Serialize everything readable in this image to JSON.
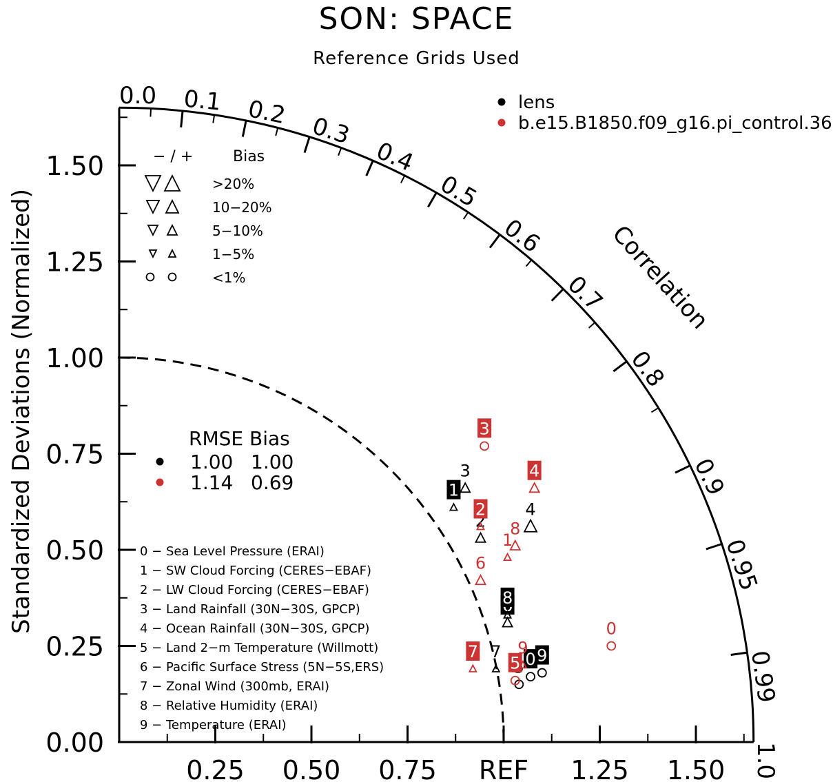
{
  "chart_data": {
    "type": "scatter",
    "subtype": "taylor-diagram",
    "title": "SON: SPACE",
    "subtitle": "Reference Grids Used",
    "ylabel": "Standardized Deviations (Normalized)",
    "arc_label": "Correlation",
    "ref_label": "REF",
    "std_max": 1.65,
    "y_ticks": [
      "0.00",
      "0.25",
      "0.50",
      "0.75",
      "1.00",
      "1.25",
      "1.50"
    ],
    "x_ticks": [
      "0.25",
      "0.50",
      "0.75",
      "REF",
      "1.25",
      "1.50"
    ],
    "corr_ticks": [
      "0.0",
      "0.1",
      "0.2",
      "0.3",
      "0.4",
      "0.5",
      "0.6",
      "0.7",
      "0.8",
      "0.9",
      "0.95",
      "0.99",
      "1.0"
    ],
    "bias_legend": {
      "header_sign": "− / +",
      "header_label": "Bias",
      "rows": [
        ">20%",
        "10−20%",
        "5−10%",
        "1−5%",
        "<1%"
      ]
    },
    "stats_legend": {
      "header": "RMSE Bias",
      "rows": [
        {
          "rmse": "1.00",
          "bias": "1.00",
          "color": "#000000"
        },
        {
          "rmse": "1.14",
          "bias": "0.69",
          "color": "#cc3333"
        }
      ]
    },
    "variables": [
      "0 − Sea Level Pressure (ERAI)",
      "1 − SW Cloud Forcing (CERES−EBAF)",
      "2 − LW Cloud Forcing (CERES−EBAF)",
      "3 − Land Rainfall (30N−30S, GPCP)",
      "4 − Ocean Rainfall (30N−30S, GPCP)",
      "5 − Land 2−m Temperature (Willmott)",
      "6 − Pacific Surface Stress (5N−5S,ERS)",
      "7 − Zonal Wind (300mb, ERAI)",
      "8 − Relative Humidity (ERAI)",
      "9 − Temperature (ERAI)"
    ],
    "series": [
      {
        "name": "lens",
        "color": "#000000",
        "points": [
          {
            "id": "0",
            "x": 1.07,
            "y": 0.17,
            "bias": "<1%",
            "sign": "+"
          },
          {
            "id": "1",
            "x": 0.87,
            "y": 0.61,
            "bias": "1-5%",
            "sign": "+"
          },
          {
            "id": "2",
            "x": 0.94,
            "y": 0.53,
            "bias": "5-10%",
            "sign": "+"
          },
          {
            "id": "3",
            "x": 0.9,
            "y": 0.66,
            "bias": "5-10%",
            "sign": "+"
          },
          {
            "id": "4",
            "x": 1.07,
            "y": 0.56,
            "bias": "10-20%",
            "sign": "+"
          },
          {
            "id": "5",
            "x": 1.04,
            "y": 0.15,
            "bias": "<1%",
            "sign": "+"
          },
          {
            "id": "6",
            "x": 1.01,
            "y": 0.31,
            "bias": "5-10%",
            "sign": "+"
          },
          {
            "id": "7",
            "x": 0.98,
            "y": 0.19,
            "bias": "1-5%",
            "sign": "+"
          },
          {
            "id": "8",
            "x": 1.01,
            "y": 0.33,
            "bias": "1-5%",
            "sign": "+"
          },
          {
            "id": "9",
            "x": 1.1,
            "y": 0.18,
            "bias": "<1%",
            "sign": "+"
          }
        ]
      },
      {
        "name": "b.e15.B1850.f09_g16.pi_control.36",
        "color": "#cc3333",
        "points": [
          {
            "id": "0",
            "x": 1.28,
            "y": 0.25,
            "bias": "<1%",
            "sign": "+"
          },
          {
            "id": "1",
            "x": 1.01,
            "y": 0.48,
            "bias": "1-5%",
            "sign": "+"
          },
          {
            "id": "2",
            "x": 0.94,
            "y": 0.56,
            "bias": "1-5%",
            "sign": "+"
          },
          {
            "id": "3",
            "x": 0.95,
            "y": 0.77,
            "bias": "<1%",
            "sign": "+"
          },
          {
            "id": "4",
            "x": 1.08,
            "y": 0.66,
            "bias": "5-10%",
            "sign": "+"
          },
          {
            "id": "5",
            "x": 1.03,
            "y": 0.16,
            "bias": "<1%",
            "sign": "+"
          },
          {
            "id": "6",
            "x": 0.94,
            "y": 0.42,
            "bias": "5-10%",
            "sign": "+"
          },
          {
            "id": "7",
            "x": 0.92,
            "y": 0.19,
            "bias": "1-5%",
            "sign": "+"
          },
          {
            "id": "8",
            "x": 1.03,
            "y": 0.51,
            "bias": "5-10%",
            "sign": "+"
          },
          {
            "id": "9",
            "x": 1.05,
            "y": 0.2,
            "bias": "1-5%",
            "sign": "+"
          }
        ]
      }
    ],
    "boxed_labels": {
      "lens": [
        "1",
        "8",
        "6",
        "0",
        "9"
      ],
      "b.e15.B1850.f09_g16.pi_control.36": [
        "3",
        "4",
        "2",
        "7",
        "5"
      ]
    }
  }
}
